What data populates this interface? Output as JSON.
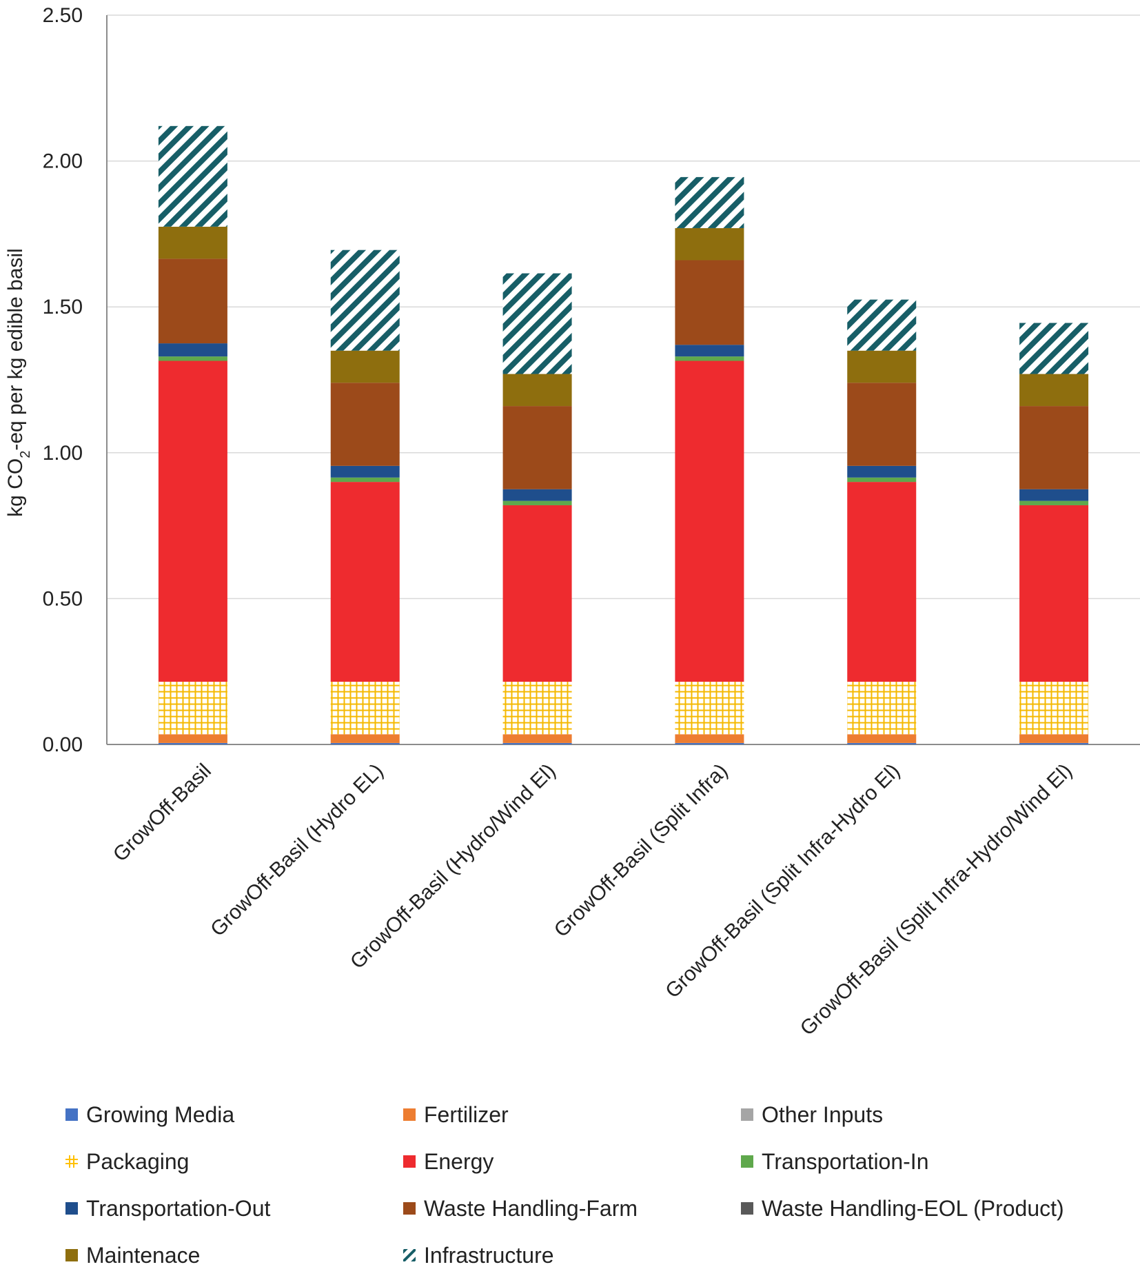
{
  "chart_data": {
    "type": "bar",
    "stacked": true,
    "title": "",
    "xlabel": "",
    "ylabel": "kg CO2-eq per kg edible basil",
    "ylabel_parts": {
      "pre": "kg CO",
      "sub": "2",
      "post": "-eq per kg  edible basil"
    },
    "ylim": [
      0,
      2.5
    ],
    "yticks": [
      "0.00",
      "0.50",
      "1.00",
      "1.50",
      "2.00",
      "2.50"
    ],
    "ytick_values": [
      0,
      0.5,
      1.0,
      1.5,
      2.0,
      2.5
    ],
    "grid": true,
    "legend_position": "bottom",
    "categories": [
      "GrowOff-Basil",
      "GrowOff-Basil (Hydro EL)",
      "GrowOff-Basil (Hydro/Wind El)",
      "GrowOff-Basil (Split Infra)",
      "GrowOff-Basil (Split Infra-Hydro El)",
      "GrowOff-Basil (Split Infra-Hydro/Wind El)"
    ],
    "series": [
      {
        "name": "Growing Media",
        "color": "#4472c4",
        "pattern": "solid",
        "values": [
          0.005,
          0.005,
          0.005,
          0.005,
          0.005,
          0.005
        ]
      },
      {
        "name": "Fertilizer",
        "color": "#ed7d31",
        "pattern": "solid",
        "values": [
          0.03,
          0.03,
          0.03,
          0.03,
          0.03,
          0.03
        ]
      },
      {
        "name": "Other Inputs",
        "color": "#a5a5a5",
        "pattern": "solid",
        "values": [
          0.0,
          0.0,
          0.0,
          0.0,
          0.0,
          0.0
        ]
      },
      {
        "name": "Packaging",
        "color": "#ffc000",
        "pattern": "grid",
        "values": [
          0.18,
          0.18,
          0.18,
          0.18,
          0.18,
          0.18
        ]
      },
      {
        "name": "Energy",
        "color": "#ee2b2f",
        "pattern": "solid",
        "values": [
          1.1,
          0.685,
          0.605,
          1.1,
          0.685,
          0.605
        ]
      },
      {
        "name": "Transportation-In",
        "color": "#5fa84c",
        "pattern": "solid",
        "values": [
          0.015,
          0.015,
          0.015,
          0.015,
          0.015,
          0.015
        ]
      },
      {
        "name": "Transportation-Out",
        "color": "#1f4e8c",
        "pattern": "solid",
        "values": [
          0.045,
          0.04,
          0.04,
          0.04,
          0.04,
          0.04
        ]
      },
      {
        "name": "Waste Handling-Farm",
        "color": "#9c4a1a",
        "pattern": "solid",
        "values": [
          0.29,
          0.285,
          0.285,
          0.29,
          0.285,
          0.285
        ]
      },
      {
        "name": "Waste Handling-EOL (Product)",
        "color": "#595959",
        "pattern": "solid",
        "values": [
          0.0,
          0.0,
          0.0,
          0.0,
          0.0,
          0.0
        ]
      },
      {
        "name": "Maintenace",
        "color": "#8e6e0e",
        "pattern": "solid",
        "values": [
          0.11,
          0.11,
          0.11,
          0.11,
          0.11,
          0.11
        ]
      },
      {
        "name": "Infrastructure",
        "color": "#175e67",
        "pattern": "stripe",
        "values": [
          0.345,
          0.345,
          0.345,
          0.175,
          0.175,
          0.175
        ]
      }
    ]
  }
}
